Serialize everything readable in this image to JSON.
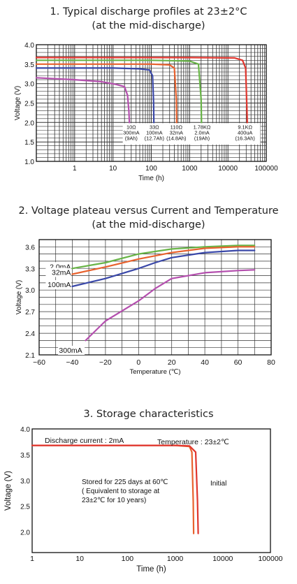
{
  "chart_data": [
    {
      "type": "line",
      "title": "1. Typical discharge profiles at 23±2°C",
      "subtitle": "(at  the mid-discharge)",
      "xlabel": "Time (h)",
      "ylabel": "Voltage (V)",
      "xscale": "log",
      "xlim": [
        0.1,
        100000
      ],
      "ylim": [
        1.0,
        4.0
      ],
      "grid": true,
      "xticks": [
        {
          "value": 1,
          "label": "1"
        },
        {
          "value": 10,
          "label": "10"
        },
        {
          "value": 100,
          "label": "100"
        },
        {
          "value": 1000,
          "label": "1000"
        },
        {
          "value": 10000,
          "label": "10000"
        },
        {
          "value": 100000,
          "label": "100000"
        }
      ],
      "yticks": [
        {
          "value": 1.0,
          "label": "1.0"
        },
        {
          "value": 1.5,
          "label": "1.5"
        },
        {
          "value": 2.0,
          "label": "2.0"
        },
        {
          "value": 2.5,
          "label": "2.5"
        },
        {
          "value": 3.0,
          "label": "3.0"
        },
        {
          "value": 3.5,
          "label": "3.5"
        },
        {
          "value": 4.0,
          "label": "4.0"
        }
      ],
      "series": [
        {
          "color": "#b44fae",
          "x": [
            0.1,
            1,
            5,
            12,
            20,
            24,
            26,
            27
          ],
          "y": [
            3.15,
            3.1,
            3.05,
            2.98,
            2.92,
            2.7,
            2.3,
            1.95
          ]
        },
        {
          "color": "#3a48a8",
          "x": [
            0.1,
            1,
            10,
            50,
            90,
            108,
            115,
            117
          ],
          "y": [
            3.4,
            3.4,
            3.4,
            3.38,
            3.35,
            3.2,
            2.5,
            1.95
          ]
        },
        {
          "color": "#e8622e",
          "x": [
            0.1,
            10,
            100,
            300,
            400,
            450,
            460
          ],
          "y": [
            3.5,
            3.5,
            3.5,
            3.48,
            3.4,
            2.6,
            1.95
          ]
        },
        {
          "color": "#68b447",
          "x": [
            0.1,
            10,
            100,
            1000,
            1700,
            2000,
            2050
          ],
          "y": [
            3.6,
            3.6,
            3.6,
            3.58,
            3.5,
            2.6,
            1.95
          ]
        },
        {
          "color": "#e0362e",
          "x": [
            0.1,
            10,
            1000,
            15000,
            24000,
            29000,
            31000,
            32000
          ],
          "y": [
            3.67,
            3.67,
            3.67,
            3.66,
            3.6,
            3.4,
            2.5,
            1.95
          ]
        }
      ],
      "annotations": [
        {
          "lines": [
            "10Ω",
            "300mA",
            "(9Ah)"
          ],
          "x": 30
        },
        {
          "lines": [
            "33Ω",
            "100mA",
            "(12.7Ah)"
          ],
          "x": 120
        },
        {
          "lines": [
            "110Ω",
            "32mA",
            "(14.8Ah)"
          ],
          "x": 450
        },
        {
          "lines": [
            "1.78KΩ",
            "2.0mA",
            "(19Ah)"
          ],
          "x": 2100
        },
        {
          "lines": [
            "9.1KΩ",
            "400uA",
            "(16.3Ah)"
          ],
          "x": 28000
        }
      ]
    },
    {
      "type": "line",
      "title": "2. Voltage plateau versus Current and Temperature",
      "subtitle": "(at the mid-discharge)",
      "xlabel": "Temperature (℃)",
      "ylabel": "Voltage (V)",
      "xlim": [
        -60,
        80
      ],
      "ylim": [
        2.1,
        3.7
      ],
      "grid": true,
      "xticks": [
        {
          "value": -60,
          "label": "−60"
        },
        {
          "value": -40,
          "label": "−40"
        },
        {
          "value": -20,
          "label": "−20"
        },
        {
          "value": 0,
          "label": "0"
        },
        {
          "value": 20,
          "label": "20"
        },
        {
          "value": 40,
          "label": "40"
        },
        {
          "value": 60,
          "label": "60"
        },
        {
          "value": 80,
          "label": "80"
        }
      ],
      "yticks": [
        {
          "value": 2.1,
          "label": "2.1"
        },
        {
          "value": 2.4,
          "label": "2.4"
        },
        {
          "value": 2.7,
          "label": "2.7"
        },
        {
          "value": 3.0,
          "label": "3.0"
        },
        {
          "value": 3.3,
          "label": "3.3"
        },
        {
          "value": 3.6,
          "label": "3.6"
        }
      ],
      "series": [
        {
          "name": "2.0mA",
          "color": "#68b447",
          "x": [
            -40,
            -20,
            0,
            20,
            40,
            60,
            70
          ],
          "y": [
            3.3,
            3.38,
            3.5,
            3.57,
            3.6,
            3.62,
            3.62
          ]
        },
        {
          "name": "32mA",
          "color": "#e8622e",
          "x": [
            -40,
            -20,
            0,
            20,
            40,
            60,
            70
          ],
          "y": [
            3.22,
            3.32,
            3.43,
            3.52,
            3.58,
            3.6,
            3.6
          ]
        },
        {
          "name": "100mA",
          "color": "#3a48a8",
          "x": [
            -40,
            -20,
            0,
            10,
            20,
            40,
            60,
            70
          ],
          "y": [
            3.05,
            3.16,
            3.3,
            3.38,
            3.45,
            3.52,
            3.55,
            3.55
          ]
        },
        {
          "name": "300mA",
          "color": "#b44fae",
          "x": [
            -32,
            -20,
            0,
            10,
            20,
            40,
            60,
            70
          ],
          "y": [
            2.3,
            2.57,
            2.85,
            3.02,
            3.16,
            3.24,
            3.27,
            3.28
          ]
        }
      ]
    },
    {
      "type": "line",
      "title": "3. Storage characteristics",
      "xlabel": "Time (h)",
      "ylabel": "Voltage (V)",
      "xscale": "log",
      "xlim": [
        1,
        100000
      ],
      "ylim": [
        1.6,
        4.0
      ],
      "grid": false,
      "xticks": [
        {
          "value": 1,
          "label": "1"
        },
        {
          "value": 10,
          "label": "10"
        },
        {
          "value": 100,
          "label": "100"
        },
        {
          "value": 1000,
          "label": "1000"
        },
        {
          "value": 10000,
          "label": "10000"
        },
        {
          "value": 100000,
          "label": "100000"
        }
      ],
      "yticks": [
        {
          "value": 2.0,
          "label": "2.0"
        },
        {
          "value": 2.5,
          "label": "2.5"
        },
        {
          "value": 3.0,
          "label": "3.0"
        },
        {
          "value": 3.5,
          "label": "3.5"
        },
        {
          "value": 4.0,
          "label": "4.0"
        }
      ],
      "series": [
        {
          "name": "Stored",
          "color": "#e8622e",
          "x": [
            1,
            1000,
            2000,
            2250,
            2400,
            2450
          ],
          "y": [
            3.68,
            3.68,
            3.66,
            3.55,
            2.6,
            1.97
          ]
        },
        {
          "name": "Initial",
          "color": "#e0362e",
          "x": [
            1,
            1000,
            2000,
            2700,
            2950,
            3050
          ],
          "y": [
            3.68,
            3.68,
            3.67,
            3.55,
            2.6,
            1.97
          ]
        }
      ],
      "annotations": {
        "discharge_current": "Discharge current : 2mA",
        "temperature": "Temperature : 23±2℃",
        "stored_note": [
          "Stored for 225 days at 60℃",
          "( Equivalent to storage at",
          "23±2℃ for 10 years)"
        ],
        "initial": "Initial"
      }
    }
  ]
}
